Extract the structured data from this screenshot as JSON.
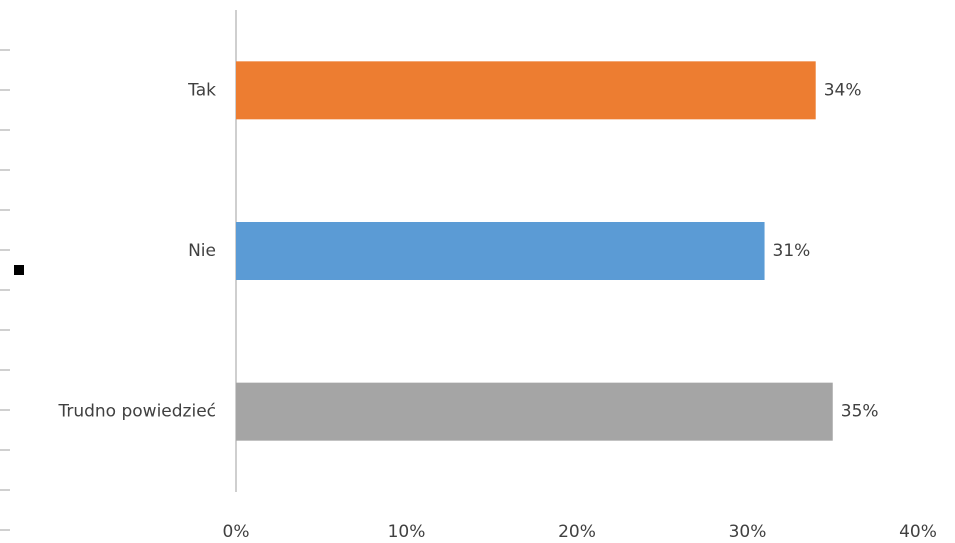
{
  "chart_data": {
    "type": "hbar",
    "categories": [
      "Tak",
      "Nie",
      "Trudno powiedzieć"
    ],
    "values": [
      34,
      31,
      35
    ],
    "value_labels": [
      "34%",
      "31%",
      "35%"
    ],
    "colors": [
      "#ed7d31",
      "#5b9bd5",
      "#a5a5a5"
    ],
    "xlim": [
      0,
      40
    ],
    "xticks": [
      {
        "value": 0,
        "label": "0%"
      },
      {
        "value": 10,
        "label": "10%"
      },
      {
        "value": 20,
        "label": "20%"
      },
      {
        "value": 30,
        "label": "30%"
      },
      {
        "value": 40,
        "label": "40%"
      }
    ]
  }
}
